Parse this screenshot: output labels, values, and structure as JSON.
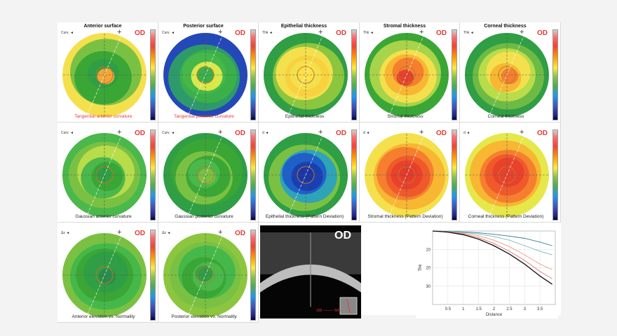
{
  "eye": "OD",
  "units": {
    "curv": "Curv. ◄",
    "thk": "Thk ◄",
    "diff": "d ◄",
    "elev": "Δz ◄"
  },
  "columns": [
    {
      "header": "Anterior surface"
    },
    {
      "header": "Posterior surface"
    },
    {
      "header": "Epithelial thickness"
    },
    {
      "header": "Stromal thickness"
    },
    {
      "header": "Corneal thickness"
    }
  ],
  "maps": [
    {
      "caption": "Tangential anterior curvature",
      "unit_key": "curv",
      "caption_red": true,
      "scheme": "curv_a"
    },
    {
      "caption": "Tangential posterior curvature",
      "unit_key": "curv",
      "caption_red": true,
      "scheme": "curv_p"
    },
    {
      "caption": "Epithelial thickness",
      "unit_key": "thk",
      "caption_red": false,
      "scheme": "thk_e"
    },
    {
      "caption": "Stromal thickness",
      "unit_key": "thk",
      "caption_red": false,
      "scheme": "thk_s"
    },
    {
      "caption": "Corneal thickness",
      "unit_key": "thk",
      "caption_red": false,
      "scheme": "thk_c"
    },
    {
      "caption": "Gaussian anterior curvature",
      "unit_key": "curv",
      "caption_red": false,
      "scheme": "gauss_a"
    },
    {
      "caption": "Gaussian posterior curvature",
      "unit_key": "curv",
      "caption_red": false,
      "scheme": "gauss_p"
    },
    {
      "caption": "Epithelial thickness (Pattern Deviation)",
      "unit_key": "diff",
      "caption_red": false,
      "scheme": "dev_e"
    },
    {
      "caption": "Stromal thickness (Pattern Deviation)",
      "unit_key": "diff",
      "caption_red": false,
      "scheme": "dev_s"
    },
    {
      "caption": "Corneal thickness (Pattern Deviation)",
      "unit_key": "diff",
      "caption_red": false,
      "scheme": "dev_c"
    },
    {
      "caption": "Anterior elevation vs. Normality",
      "unit_key": "elev",
      "caption_red": false,
      "scheme": "elev_a"
    },
    {
      "caption": "Posterior elevation vs. Normality",
      "unit_key": "elev",
      "caption_red": false,
      "scheme": "elev_p"
    }
  ],
  "oct": {
    "label": "OD",
    "scale": "100 ——— 500"
  },
  "chart_data": {
    "type": "line",
    "xlabel": "Distance",
    "ylabel": "Thk",
    "x_ticks": [
      "0.5",
      "1",
      "1.5",
      "2",
      "2.5",
      "3",
      "3.5"
    ],
    "y_ticks": [
      "10",
      "20",
      "30"
    ],
    "xlim": [
      0,
      4
    ],
    "ylim": [
      0,
      40
    ],
    "series": [
      {
        "color": "#2e7d8c",
        "x": [
          0,
          0.5,
          1,
          1.5,
          2,
          2.5,
          3,
          3.5,
          3.9
        ],
        "y": [
          0,
          0.2,
          0.5,
          1,
          1.8,
          2.8,
          4,
          6,
          8
        ]
      },
      {
        "color": "#7ab8b8",
        "x": [
          0,
          0.5,
          1,
          1.5,
          2,
          2.5,
          3,
          3.5,
          3.9
        ],
        "y": [
          0,
          0.3,
          0.8,
          1.6,
          3,
          5,
          8,
          11,
          13
        ]
      },
      {
        "color": "#e8a080",
        "x": [
          0,
          0.5,
          1,
          1.5,
          2,
          2.5,
          3,
          3.5,
          3.9
        ],
        "y": [
          0,
          0.4,
          1.2,
          2.6,
          5,
          8.5,
          13,
          18,
          21
        ]
      },
      {
        "color": "#e57373",
        "x": [
          0,
          0.5,
          1,
          1.5,
          2,
          2.5,
          3,
          3.5,
          3.9
        ],
        "y": [
          0,
          0.5,
          1.6,
          3.6,
          6.8,
          11,
          16,
          22,
          26
        ]
      },
      {
        "color": "#111111",
        "x": [
          0,
          0.5,
          1,
          1.5,
          2,
          2.5,
          3,
          3.5,
          3.9
        ],
        "y": [
          0,
          0.6,
          2,
          4.4,
          8,
          12.5,
          18,
          24.5,
          29
        ]
      }
    ]
  }
}
